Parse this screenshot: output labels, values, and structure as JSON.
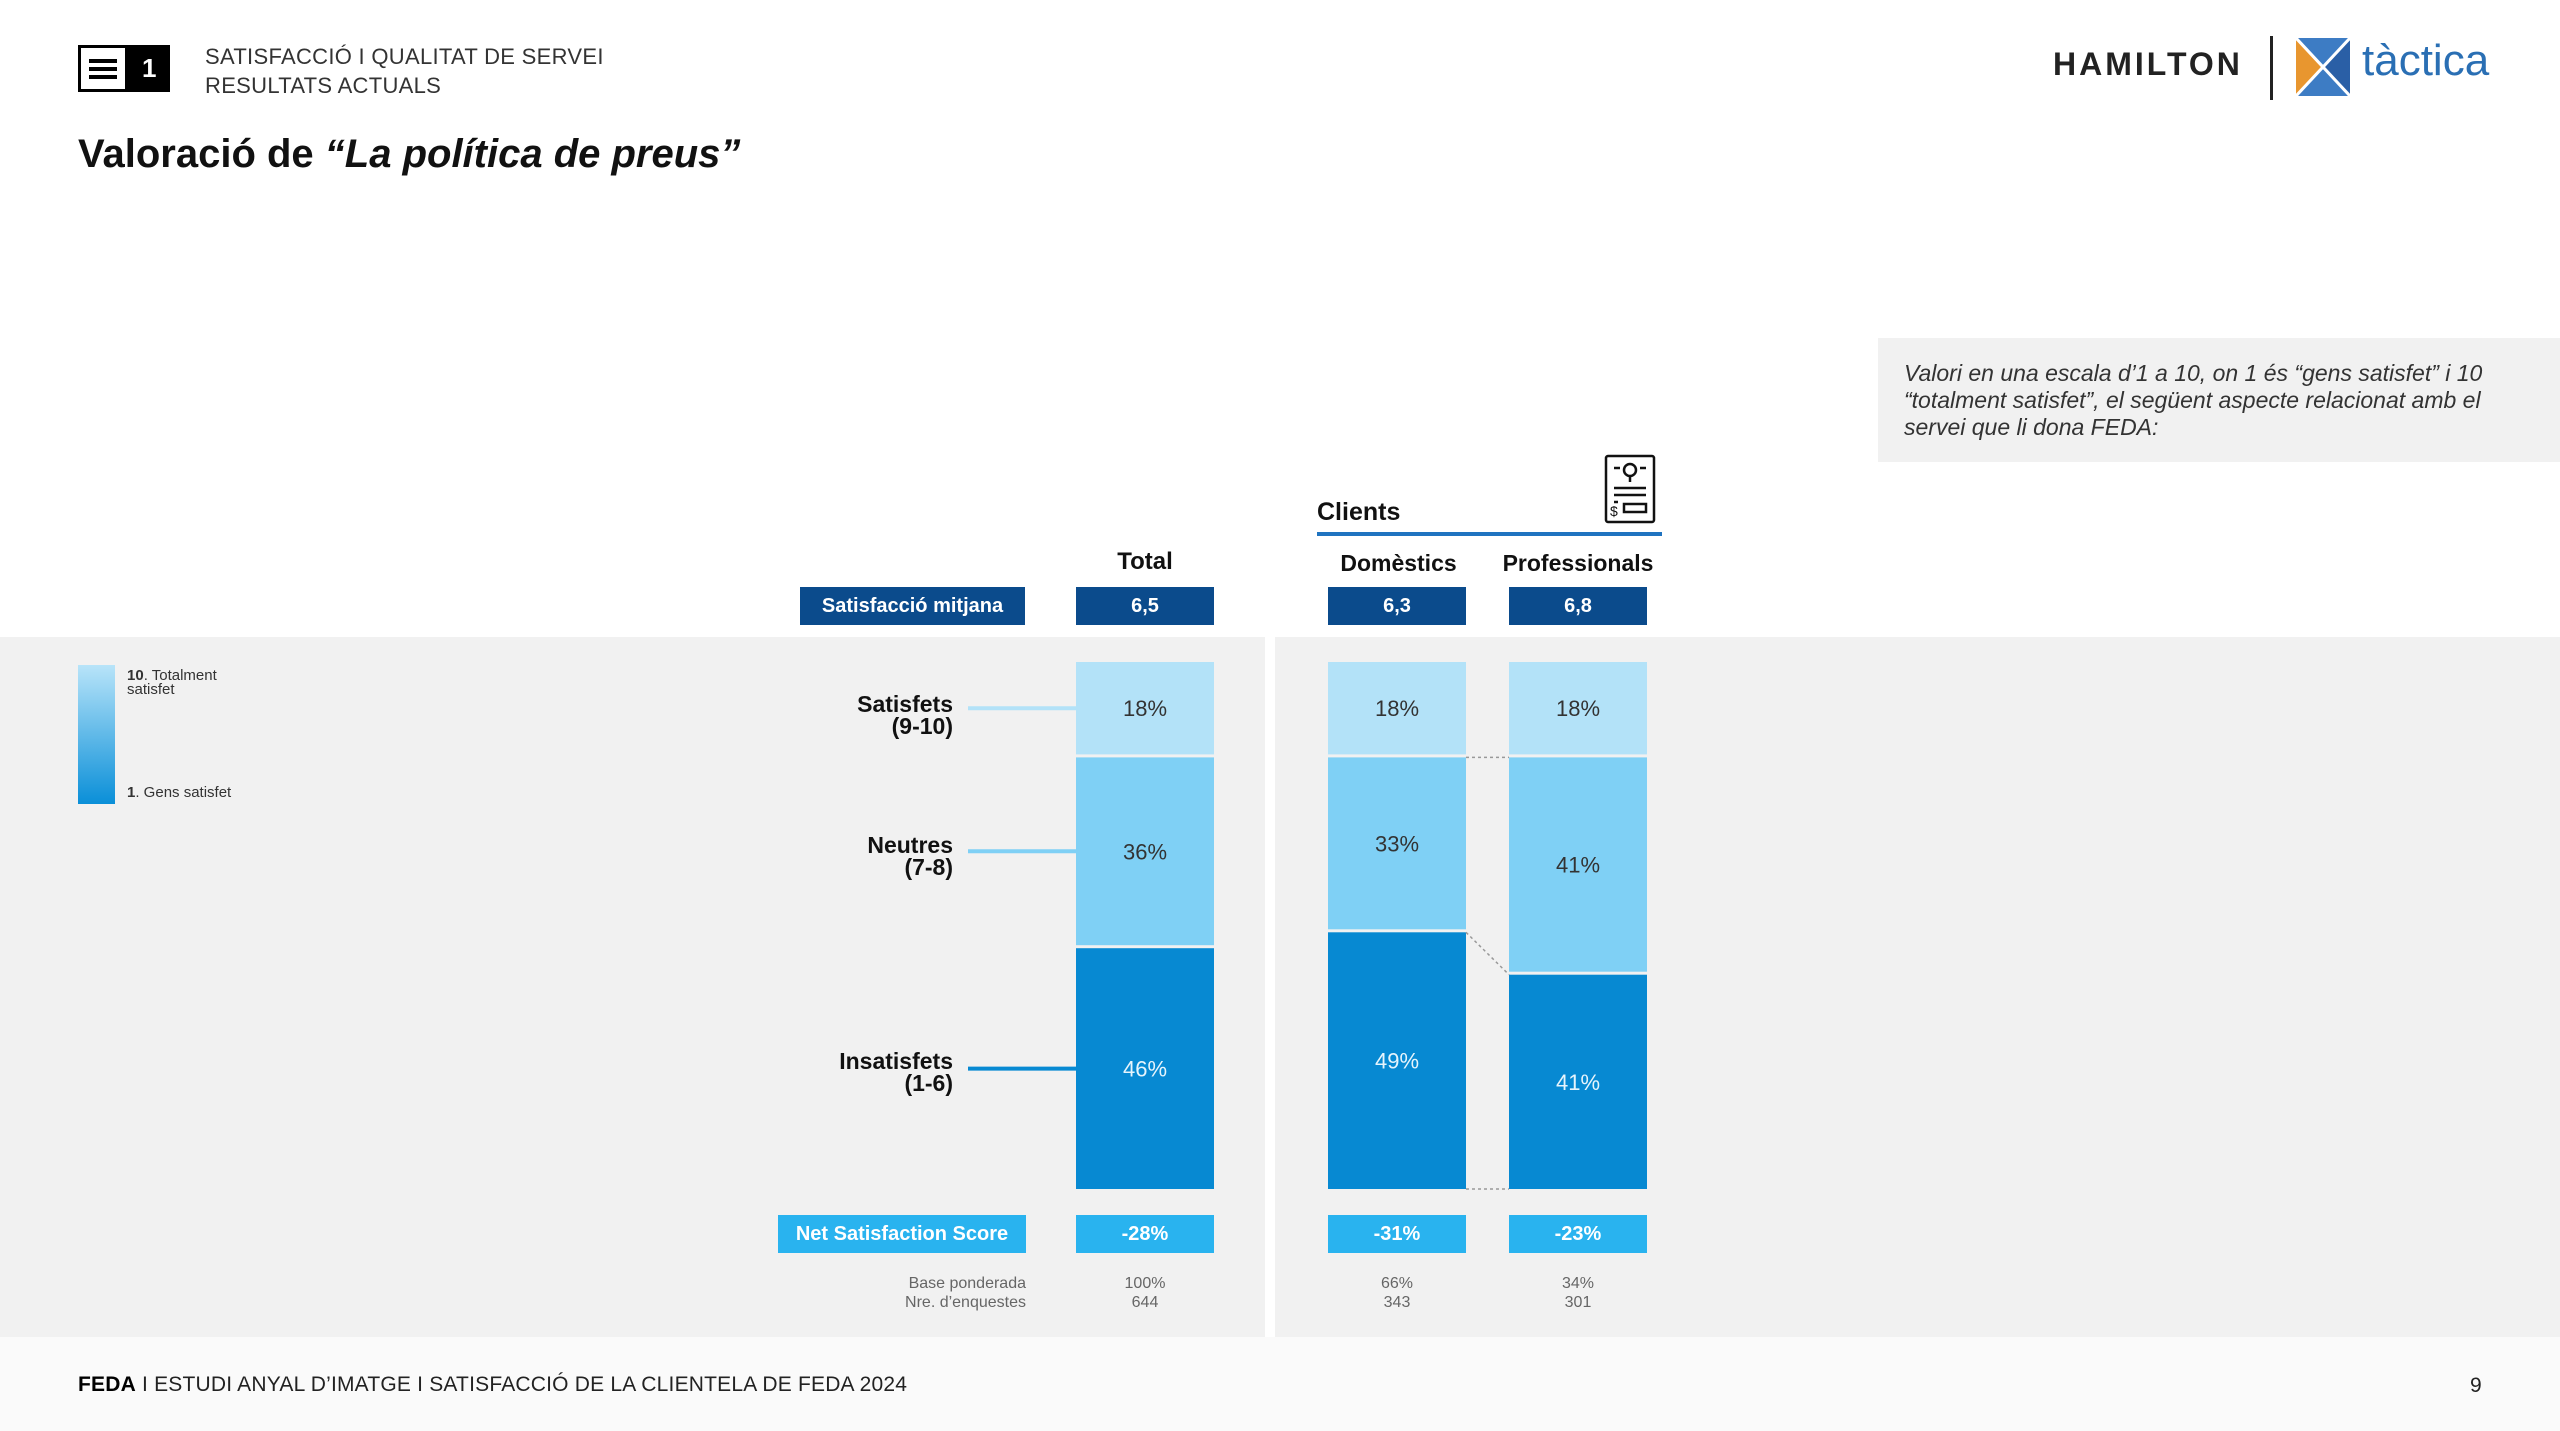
{
  "header": {
    "section_number": "1",
    "line1": "SATISFACCIÓ I QUALITAT DE SERVEI",
    "line2": "RESULTATS ACTUALS",
    "title_prefix": "Valoració de ",
    "title_italic": "“La política de preus”"
  },
  "logos": {
    "hamilton": "HAMILTON",
    "tactica": "tàctica"
  },
  "note": "Valori en una escala d’1 a 10, on 1 és “gens satisfet” i 10 “totalment satisfet”, el següent aspecte relacionat amb el servei que li dona FEDA:",
  "legend": {
    "top_num": "10",
    "top_text": ". Totalment satisfet",
    "bottom_num": "1",
    "bottom_text": ". Gens satisfet"
  },
  "labels": {
    "group": "Clients",
    "mean_label": "Satisfacció mitjana",
    "nss_label": "Net Satisfaction Score",
    "base_label": "Base ponderada",
    "n_label": "Nre. d’enquestes"
  },
  "chart_data": {
    "type": "stacked-bar",
    "categories": [
      "Total",
      "Domèstics",
      "Professionals"
    ],
    "group_label": "Clients",
    "segments": [
      {
        "name": "Satisfets",
        "sub": "(9-10)",
        "color": "#b3e2f8",
        "text_color": "#333333",
        "values": [
          18,
          18,
          18
        ],
        "labels": [
          "18%",
          "18%",
          "18%"
        ]
      },
      {
        "name": "Neutres",
        "sub": "(7-8)",
        "color": "#7fd0f5",
        "text_color": "#333333",
        "values": [
          36,
          33,
          41
        ],
        "labels": [
          "36%",
          "33%",
          "41%"
        ]
      },
      {
        "name": "Insatisfets",
        "sub": "(1-6)",
        "color": "#0789d2",
        "text_color": "#e6f4fc",
        "values": [
          46,
          49,
          41
        ],
        "labels": [
          "46%",
          "49%",
          "41%"
        ]
      }
    ],
    "mean_satisfaction": [
      "6,5",
      "6,3",
      "6,8"
    ],
    "net_satisfaction_score": [
      "-28%",
      "-31%",
      "-23%"
    ],
    "base_weighted": [
      "100%",
      "66%",
      "34%"
    ],
    "n_surveys": [
      "644",
      "343",
      "301"
    ]
  },
  "footer": {
    "brand": "FEDA",
    "separator": " I ",
    "text": "ESTUDI ANYAL D’IMATGE I SATISFACCIÓ DE LA CLIENTELA DE FEDA 2024",
    "page": "9"
  }
}
